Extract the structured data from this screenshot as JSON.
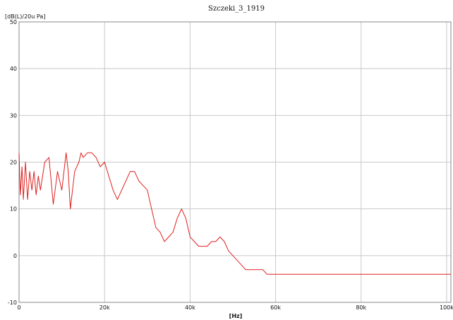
{
  "chart_data": {
    "type": "line",
    "title": "Szczeki_3_1919",
    "ylabel": "[dB(L)/20u Pa]",
    "xlabel": "[Hz]",
    "xlim": [
      0,
      101000
    ],
    "ylim": [
      -10,
      50
    ],
    "x_ticks": [
      0,
      20000,
      40000,
      60000,
      80000,
      100000
    ],
    "x_tick_labels": [
      "0",
      "20k",
      "40k",
      "60k",
      "80k",
      "100k"
    ],
    "y_ticks": [
      -10,
      0,
      10,
      20,
      30,
      40,
      50
    ],
    "y_tick_labels": [
      "-10",
      "0",
      "10",
      "20",
      "30",
      "40",
      "50"
    ],
    "grid": true,
    "series": [
      {
        "color": "#e02020",
        "x": [
          0,
          300,
          700,
          1000,
          1500,
          2000,
          2500,
          3000,
          3500,
          4000,
          4500,
          5000,
          6000,
          7000,
          8000,
          9000,
          10000,
          11000,
          11500,
          12000,
          13000,
          14000,
          14500,
          15000,
          16000,
          17000,
          18000,
          19000,
          20000,
          21000,
          22000,
          23000,
          24000,
          25000,
          26000,
          27000,
          28000,
          29000,
          30000,
          31000,
          32000,
          33000,
          34000,
          35000,
          36000,
          37000,
          38000,
          39000,
          40000,
          41000,
          42000,
          43000,
          44000,
          45000,
          46000,
          47000,
          48000,
          49000,
          50000,
          51000,
          52000,
          53000,
          54000,
          55000,
          56000,
          57000,
          58000,
          60000,
          62000,
          65000,
          70000,
          75000,
          80000,
          85000,
          90000,
          95000,
          101000
        ],
        "values": [
          22,
          13,
          19,
          12,
          20,
          12,
          18,
          14,
          18,
          13,
          17,
          14,
          20,
          21,
          11,
          18,
          14,
          22,
          18,
          10,
          18,
          20,
          22,
          21,
          22,
          22,
          21,
          19,
          20,
          17,
          14,
          12,
          14,
          16,
          18,
          18,
          16,
          15,
          14,
          10,
          6,
          5,
          3,
          4,
          5,
          8,
          10,
          8,
          4,
          3,
          2,
          2,
          2,
          3,
          3,
          4,
          3,
          1,
          0,
          -1,
          -2,
          -3,
          -3,
          -3,
          -3,
          -3,
          -4,
          -4,
          -4,
          -4,
          -4,
          -4,
          -4,
          -4,
          -4,
          -4,
          -4
        ]
      }
    ]
  }
}
